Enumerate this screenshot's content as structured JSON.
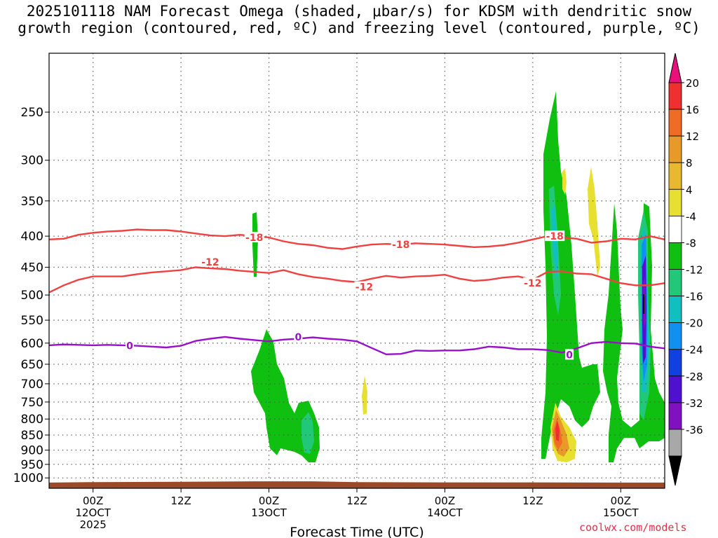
{
  "title_line1": "2025101118 NAM Forecast Omega (shaded, μbar/s) for KDSM with dendritic snow",
  "title_line2": "growth region (contoured, red, ºC) and freezing level (contoured, purple, ºC)",
  "credit": "coolwx.com/models",
  "chart_data": {
    "type": "heatmap",
    "xlabel": "Forecast Time (UTC)",
    "ylabel": "",
    "x_ticks": [
      {
        "hour": 0,
        "l1": "00Z",
        "l2": "12OCT",
        "l3": "2025"
      },
      {
        "hour": 12,
        "l1": "12Z",
        "l2": "",
        "l3": ""
      },
      {
        "hour": 24,
        "l1": "00Z",
        "l2": "13OCT",
        "l3": ""
      },
      {
        "hour": 36,
        "l1": "12Z",
        "l2": "",
        "l3": ""
      },
      {
        "hour": 48,
        "l1": "00Z",
        "l2": "14OCT",
        "l3": ""
      },
      {
        "hour": 60,
        "l1": "12Z",
        "l2": "",
        "l3": ""
      },
      {
        "hour": 72,
        "l1": "00Z",
        "l2": "15OCT",
        "l3": ""
      }
    ],
    "xlim_hours": [
      -6,
      78
    ],
    "y_ticks": [
      250,
      300,
      350,
      400,
      450,
      500,
      550,
      600,
      650,
      700,
      750,
      800,
      850,
      900,
      950,
      1000
    ],
    "ylim_hPa": [
      1040,
      200
    ],
    "yscale": "log",
    "grid": true,
    "colorbar": {
      "labels": [
        20,
        16,
        12,
        8,
        4,
        -4,
        -8,
        -12,
        -16,
        -20,
        -24,
        -28,
        -32,
        -36
      ],
      "colors": [
        "#e8107a",
        "#f03030",
        "#f06c24",
        "#e89a28",
        "#e8b830",
        "#e8e030",
        "#ffffff",
        "#10c010",
        "#20c878",
        "#10c0c0",
        "#1090f0",
        "#1040e0",
        "#5010d0",
        "#8010c0",
        "#a8a8a8",
        "#000000"
      ]
    },
    "contours": [
      {
        "label": "-18",
        "color": "#f04040",
        "points": [
          [
            -6,
            405
          ],
          [
            -4,
            404
          ],
          [
            -2,
            398
          ],
          [
            0,
            395
          ],
          [
            2,
            393
          ],
          [
            4,
            392
          ],
          [
            6,
            390
          ],
          [
            8,
            391
          ],
          [
            10,
            391
          ],
          [
            12,
            393
          ],
          [
            14,
            396
          ],
          [
            16,
            399
          ],
          [
            18,
            400
          ],
          [
            20,
            398
          ],
          [
            22,
            400
          ],
          [
            24,
            402
          ],
          [
            26,
            408
          ],
          [
            28,
            412
          ],
          [
            30,
            414
          ],
          [
            32,
            418
          ],
          [
            34,
            420
          ],
          [
            36,
            416
          ],
          [
            38,
            413
          ],
          [
            40,
            412
          ],
          [
            42,
            413
          ],
          [
            44,
            411
          ],
          [
            46,
            412
          ],
          [
            48,
            413
          ],
          [
            50,
            415
          ],
          [
            52,
            417
          ],
          [
            54,
            416
          ],
          [
            56,
            414
          ],
          [
            58,
            410
          ],
          [
            60,
            405
          ],
          [
            62,
            400
          ],
          [
            64,
            402
          ],
          [
            66,
            404
          ],
          [
            68,
            410
          ],
          [
            70,
            408
          ],
          [
            72,
            404
          ],
          [
            74,
            405
          ],
          [
            76,
            400
          ],
          [
            78,
            405
          ]
        ],
        "label_positions": [
          [
            22,
            402
          ],
          [
            42,
            413
          ],
          [
            63,
            400
          ]
        ]
      },
      {
        "label": "-12",
        "color": "#f04040",
        "points": [
          [
            -6,
            495
          ],
          [
            -4,
            482
          ],
          [
            -2,
            472
          ],
          [
            0,
            466
          ],
          [
            2,
            466
          ],
          [
            4,
            466
          ],
          [
            6,
            462
          ],
          [
            8,
            459
          ],
          [
            10,
            457
          ],
          [
            12,
            455
          ],
          [
            14,
            450
          ],
          [
            16,
            452
          ],
          [
            18,
            453
          ],
          [
            20,
            456
          ],
          [
            22,
            458
          ],
          [
            24,
            460
          ],
          [
            26,
            455
          ],
          [
            28,
            462
          ],
          [
            30,
            467
          ],
          [
            32,
            470
          ],
          [
            34,
            474
          ],
          [
            36,
            476
          ],
          [
            38,
            470
          ],
          [
            40,
            465
          ],
          [
            42,
            468
          ],
          [
            44,
            466
          ],
          [
            46,
            465
          ],
          [
            48,
            463
          ],
          [
            50,
            470
          ],
          [
            52,
            474
          ],
          [
            54,
            472
          ],
          [
            56,
            468
          ],
          [
            58,
            466
          ],
          [
            60,
            472
          ],
          [
            62,
            458
          ],
          [
            64,
            457
          ],
          [
            66,
            461
          ],
          [
            68,
            462
          ],
          [
            70,
            470
          ],
          [
            72,
            478
          ],
          [
            74,
            482
          ],
          [
            76,
            482
          ],
          [
            78,
            478
          ]
        ],
        "label_positions": [
          [
            16,
            441
          ],
          [
            37,
            485
          ],
          [
            60,
            478
          ]
        ]
      },
      {
        "label": "0",
        "color": "#9a10c8",
        "points": [
          [
            -6,
            605
          ],
          [
            -4,
            603
          ],
          [
            -2,
            604
          ],
          [
            0,
            605
          ],
          [
            2,
            604
          ],
          [
            4,
            605
          ],
          [
            6,
            606
          ],
          [
            8,
            608
          ],
          [
            10,
            610
          ],
          [
            12,
            606
          ],
          [
            14,
            595
          ],
          [
            16,
            590
          ],
          [
            18,
            586
          ],
          [
            20,
            590
          ],
          [
            22,
            593
          ],
          [
            24,
            596
          ],
          [
            26,
            592
          ],
          [
            28,
            590
          ],
          [
            30,
            587
          ],
          [
            32,
            590
          ],
          [
            34,
            592
          ],
          [
            36,
            596
          ],
          [
            38,
            611
          ],
          [
            40,
            626
          ],
          [
            42,
            625
          ],
          [
            44,
            617
          ],
          [
            46,
            618
          ],
          [
            48,
            617
          ],
          [
            50,
            617
          ],
          [
            52,
            614
          ],
          [
            54,
            608
          ],
          [
            56,
            610
          ],
          [
            58,
            614
          ],
          [
            60,
            614
          ],
          [
            62,
            616
          ],
          [
            64,
            622
          ],
          [
            66,
            612
          ],
          [
            68,
            600
          ],
          [
            70,
            597
          ],
          [
            72,
            600
          ],
          [
            74,
            601
          ],
          [
            76,
            608
          ],
          [
            78,
            612
          ]
        ],
        "label_positions": [
          [
            5,
            606
          ],
          [
            28,
            586
          ],
          [
            65,
            627
          ]
        ]
      }
    ]
  }
}
